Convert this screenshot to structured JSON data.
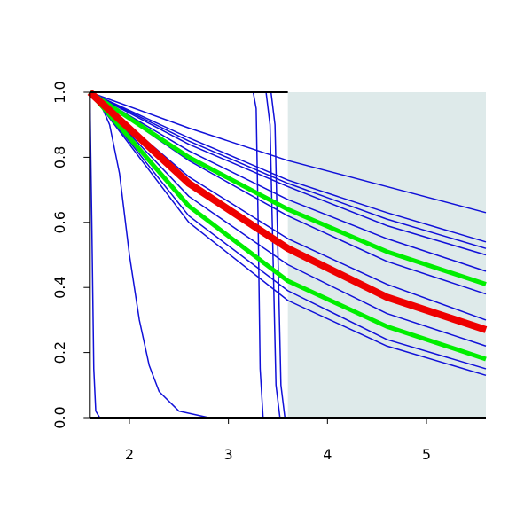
{
  "chart_data": {
    "type": "line",
    "xlim": [
      1.6,
      5.6
    ],
    "ylim": [
      0,
      1
    ],
    "xticks": [
      2,
      3,
      4,
      5
    ],
    "yticks": [
      {
        "value": 0,
        "label": "0.0"
      },
      0.2,
      0.4,
      0.6,
      0.8,
      {
        "value": 1,
        "label": "1.0"
      }
    ],
    "shade": {
      "x": [
        3.6,
        5.6
      ],
      "color": "#deeaea"
    },
    "series": [
      {
        "color": "#1010d8",
        "linewidth": 1.5,
        "x": [
          1.6,
          1.62,
          1.64,
          1.66,
          1.7,
          5.6
        ],
        "values": [
          1,
          0.6,
          0.15,
          0.02,
          0,
          0
        ]
      },
      {
        "color": "#1010d8",
        "linewidth": 1.5,
        "x": [
          1.6,
          1.7,
          1.8,
          1.9,
          2.0,
          2.1,
          2.2,
          2.3,
          2.5,
          2.8,
          5.6
        ],
        "values": [
          1,
          0.97,
          0.9,
          0.75,
          0.5,
          0.3,
          0.16,
          0.08,
          0.02,
          0,
          0
        ]
      },
      {
        "color": "#1010d8",
        "linewidth": 1.5,
        "x": [
          1.6,
          3.25,
          3.28,
          3.3,
          3.32,
          3.35,
          5.6
        ],
        "values": [
          1,
          1,
          0.95,
          0.6,
          0.15,
          0,
          0
        ]
      },
      {
        "color": "#1010d8",
        "linewidth": 1.5,
        "x": [
          1.6,
          3.38,
          3.42,
          3.45,
          3.48,
          3.52,
          5.6
        ],
        "values": [
          1,
          1,
          0.9,
          0.5,
          0.1,
          0,
          0
        ]
      },
      {
        "color": "#1010d8",
        "linewidth": 1.5,
        "x": [
          1.6,
          3.43,
          3.47,
          3.5,
          3.53,
          3.57,
          5.6
        ],
        "values": [
          1,
          1,
          0.9,
          0.5,
          0.1,
          0,
          0
        ]
      },
      {
        "color": "#1010d8",
        "linewidth": 1.5,
        "x": [
          1.6,
          2.6,
          3.6,
          4.6,
          5.6
        ],
        "values": [
          1,
          0.89,
          0.79,
          0.71,
          0.63
        ]
      },
      {
        "color": "#1010d8",
        "linewidth": 1.5,
        "x": [
          1.6,
          2.6,
          3.6,
          4.6,
          5.6
        ],
        "values": [
          1,
          0.86,
          0.73,
          0.63,
          0.54
        ]
      },
      {
        "color": "#1010d8",
        "linewidth": 1.5,
        "x": [
          1.6,
          2.6,
          3.6,
          4.6,
          5.6
        ],
        "values": [
          1,
          0.85,
          0.72,
          0.61,
          0.52
        ]
      },
      {
        "color": "#1010d8",
        "linewidth": 1.5,
        "x": [
          1.6,
          2.6,
          3.6,
          4.6,
          5.6
        ],
        "values": [
          1,
          0.84,
          0.71,
          0.59,
          0.5
        ]
      },
      {
        "color": "#1010d8",
        "linewidth": 1.5,
        "x": [
          1.6,
          2.6,
          3.6,
          4.6,
          5.6
        ],
        "values": [
          1,
          0.82,
          0.67,
          0.55,
          0.45
        ]
      },
      {
        "color": "#1010d8",
        "linewidth": 1.5,
        "x": [
          1.6,
          2.6,
          3.6,
          4.6,
          5.6
        ],
        "values": [
          1,
          0.79,
          0.62,
          0.48,
          0.38
        ]
      },
      {
        "color": "#1010d8",
        "linewidth": 1.5,
        "x": [
          1.6,
          2.6,
          3.6,
          4.6,
          5.6
        ],
        "values": [
          1,
          0.74,
          0.55,
          0.41,
          0.3
        ]
      },
      {
        "color": "#1010d8",
        "linewidth": 1.5,
        "x": [
          1.6,
          2.6,
          3.6,
          4.6,
          5.6
        ],
        "values": [
          1,
          0.68,
          0.47,
          0.32,
          0.22
        ]
      },
      {
        "color": "#1010d8",
        "linewidth": 1.5,
        "x": [
          1.6,
          2.6,
          3.6,
          4.6,
          5.6
        ],
        "values": [
          1,
          0.62,
          0.39,
          0.24,
          0.15
        ]
      },
      {
        "color": "#1010d8",
        "linewidth": 1.5,
        "x": [
          1.6,
          2.6,
          3.6,
          4.6,
          5.6
        ],
        "values": [
          1,
          0.6,
          0.36,
          0.22,
          0.13
        ]
      },
      {
        "color": "#00ee00",
        "linewidth": 5,
        "x": [
          1.6,
          2.6,
          3.6,
          4.6,
          5.6
        ],
        "values": [
          1,
          0.8,
          0.64,
          0.51,
          0.41
        ]
      },
      {
        "color": "#00ee00",
        "linewidth": 5,
        "x": [
          1.6,
          2.6,
          3.6,
          4.6,
          5.6
        ],
        "values": [
          1,
          0.65,
          0.42,
          0.28,
          0.18
        ]
      },
      {
        "color": "#ee0000",
        "linewidth": 8,
        "x": [
          1.6,
          2.6,
          3.6,
          4.6,
          5.6
        ],
        "values": [
          1,
          0.72,
          0.52,
          0.37,
          0.27
        ]
      }
    ]
  }
}
